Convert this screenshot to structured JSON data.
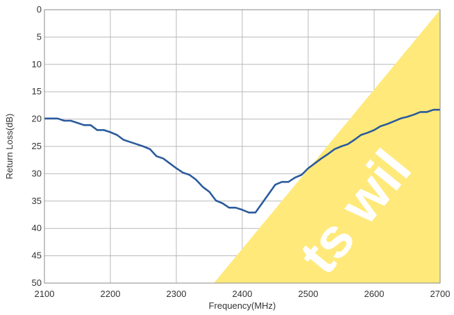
{
  "chart_data": {
    "type": "line",
    "xlabel": "Frequency(MHz)",
    "ylabel": "Return Loss(dB)",
    "xlim": [
      2100,
      2700
    ],
    "ylim": [
      0,
      50
    ],
    "y_inverted": true,
    "grid": true,
    "x_ticks": [
      "2100",
      "2200",
      "2300",
      "2400",
      "2500",
      "2600",
      "2700"
    ],
    "y_ticks": [
      "0",
      "5",
      "10",
      "15",
      "20",
      "25",
      "30",
      "35",
      "40",
      "45",
      "50"
    ],
    "series": [
      {
        "color": "#2a5a9c",
        "x": [
          2100,
          2110,
          2120,
          2130,
          2140,
          2150,
          2160,
          2170,
          2180,
          2190,
          2200,
          2210,
          2220,
          2230,
          2240,
          2250,
          2260,
          2270,
          2280,
          2290,
          2300,
          2310,
          2320,
          2330,
          2340,
          2350,
          2360,
          2370,
          2380,
          2390,
          2400,
          2410,
          2420,
          2430,
          2440,
          2450,
          2460,
          2470,
          2480,
          2490,
          2500,
          2510,
          2520,
          2530,
          2540,
          2550,
          2560,
          2570,
          2580,
          2590,
          2600,
          2610,
          2620,
          2630,
          2640,
          2650,
          2660,
          2670,
          2680,
          2690,
          2700
        ],
        "values": [
          19.9,
          19.9,
          19.9,
          20.3,
          20.3,
          20.7,
          21.1,
          21.1,
          22.0,
          22.0,
          22.4,
          22.9,
          23.8,
          24.2,
          24.6,
          25.0,
          25.5,
          26.8,
          27.2,
          28.1,
          29.0,
          29.8,
          30.2,
          31.1,
          32.4,
          33.3,
          34.9,
          35.4,
          36.2,
          36.2,
          36.6,
          37.1,
          37.1,
          35.4,
          33.7,
          32.0,
          31.5,
          31.5,
          30.7,
          30.2,
          29.0,
          28.1,
          27.2,
          26.4,
          25.5,
          25.0,
          24.6,
          23.8,
          22.9,
          22.5,
          22.0,
          21.3,
          20.9,
          20.4,
          19.9,
          19.6,
          19.2,
          18.7,
          18.7,
          18.3,
          18.3
        ]
      }
    ]
  },
  "watermark": {
    "text": "ts wil",
    "color": "#ffe97a"
  }
}
